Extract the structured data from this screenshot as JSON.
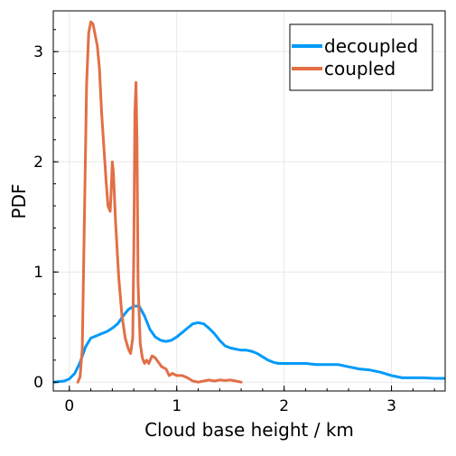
{
  "chart_data": {
    "type": "line",
    "title": "",
    "xlabel": "Cloud base height / km",
    "ylabel": "PDF",
    "xlim": [
      -0.15,
      3.5
    ],
    "ylim": [
      -0.08,
      3.37
    ],
    "xticks": [
      0,
      1,
      2,
      3
    ],
    "yticks": [
      0,
      1,
      2,
      3
    ],
    "x_minor_step": 0.2,
    "y_minor_step": 0.2,
    "grid": true,
    "legend_position": "top-right",
    "series": [
      {
        "name": "decoupled",
        "color": "#009AF9",
        "points": [
          [
            -0.15,
            0.0
          ],
          [
            -0.05,
            0.01
          ],
          [
            0.0,
            0.03
          ],
          [
            0.05,
            0.08
          ],
          [
            0.1,
            0.18
          ],
          [
            0.15,
            0.32
          ],
          [
            0.2,
            0.4
          ],
          [
            0.25,
            0.42
          ],
          [
            0.3,
            0.44
          ],
          [
            0.35,
            0.46
          ],
          [
            0.4,
            0.49
          ],
          [
            0.45,
            0.53
          ],
          [
            0.5,
            0.6
          ],
          [
            0.55,
            0.66
          ],
          [
            0.6,
            0.69
          ],
          [
            0.65,
            0.69
          ],
          [
            0.7,
            0.6
          ],
          [
            0.75,
            0.48
          ],
          [
            0.8,
            0.41
          ],
          [
            0.85,
            0.38
          ],
          [
            0.9,
            0.37
          ],
          [
            0.95,
            0.38
          ],
          [
            1.0,
            0.41
          ],
          [
            1.05,
            0.45
          ],
          [
            1.1,
            0.49
          ],
          [
            1.15,
            0.53
          ],
          [
            1.2,
            0.54
          ],
          [
            1.25,
            0.53
          ],
          [
            1.3,
            0.49
          ],
          [
            1.35,
            0.44
          ],
          [
            1.4,
            0.38
          ],
          [
            1.45,
            0.33
          ],
          [
            1.5,
            0.31
          ],
          [
            1.55,
            0.3
          ],
          [
            1.6,
            0.29
          ],
          [
            1.65,
            0.29
          ],
          [
            1.7,
            0.28
          ],
          [
            1.75,
            0.26
          ],
          [
            1.8,
            0.23
          ],
          [
            1.85,
            0.2
          ],
          [
            1.9,
            0.18
          ],
          [
            1.95,
            0.17
          ],
          [
            2.0,
            0.17
          ],
          [
            2.1,
            0.17
          ],
          [
            2.2,
            0.17
          ],
          [
            2.3,
            0.16
          ],
          [
            2.4,
            0.16
          ],
          [
            2.5,
            0.16
          ],
          [
            2.55,
            0.15
          ],
          [
            2.6,
            0.14
          ],
          [
            2.7,
            0.12
          ],
          [
            2.8,
            0.11
          ],
          [
            2.9,
            0.09
          ],
          [
            3.0,
            0.06
          ],
          [
            3.1,
            0.04
          ],
          [
            3.2,
            0.04
          ],
          [
            3.3,
            0.04
          ],
          [
            3.4,
            0.035
          ],
          [
            3.5,
            0.035
          ]
        ]
      },
      {
        "name": "coupled",
        "color": "#E26F46",
        "points": [
          [
            0.08,
            0.0
          ],
          [
            0.1,
            0.05
          ],
          [
            0.12,
            0.3
          ],
          [
            0.14,
            1.5
          ],
          [
            0.16,
            2.7
          ],
          [
            0.18,
            3.17
          ],
          [
            0.2,
            3.27
          ],
          [
            0.22,
            3.25
          ],
          [
            0.24,
            3.15
          ],
          [
            0.26,
            3.05
          ],
          [
            0.28,
            2.85
          ],
          [
            0.3,
            2.45
          ],
          [
            0.32,
            2.15
          ],
          [
            0.34,
            1.85
          ],
          [
            0.36,
            1.6
          ],
          [
            0.38,
            1.55
          ],
          [
            0.39,
            1.75
          ],
          [
            0.4,
            2.0
          ],
          [
            0.41,
            1.9
          ],
          [
            0.43,
            1.45
          ],
          [
            0.46,
            0.95
          ],
          [
            0.49,
            0.6
          ],
          [
            0.52,
            0.4
          ],
          [
            0.55,
            0.3
          ],
          [
            0.57,
            0.26
          ],
          [
            0.59,
            0.4
          ],
          [
            0.6,
            1.2
          ],
          [
            0.61,
            2.45
          ],
          [
            0.62,
            2.72
          ],
          [
            0.63,
            2.2
          ],
          [
            0.64,
            0.9
          ],
          [
            0.66,
            0.35
          ],
          [
            0.68,
            0.22
          ],
          [
            0.7,
            0.17
          ],
          [
            0.72,
            0.2
          ],
          [
            0.74,
            0.17
          ],
          [
            0.77,
            0.24
          ],
          [
            0.8,
            0.22
          ],
          [
            0.83,
            0.18
          ],
          [
            0.86,
            0.14
          ],
          [
            0.9,
            0.12
          ],
          [
            0.93,
            0.06
          ],
          [
            0.96,
            0.08
          ],
          [
            1.0,
            0.06
          ],
          [
            1.05,
            0.06
          ],
          [
            1.1,
            0.04
          ],
          [
            1.15,
            0.01
          ],
          [
            1.2,
            0.0
          ],
          [
            1.25,
            0.01
          ],
          [
            1.3,
            0.02
          ],
          [
            1.35,
            0.01
          ],
          [
            1.4,
            0.02
          ],
          [
            1.45,
            0.015
          ],
          [
            1.5,
            0.02
          ],
          [
            1.55,
            0.01
          ],
          [
            1.6,
            0.0
          ]
        ]
      }
    ]
  }
}
